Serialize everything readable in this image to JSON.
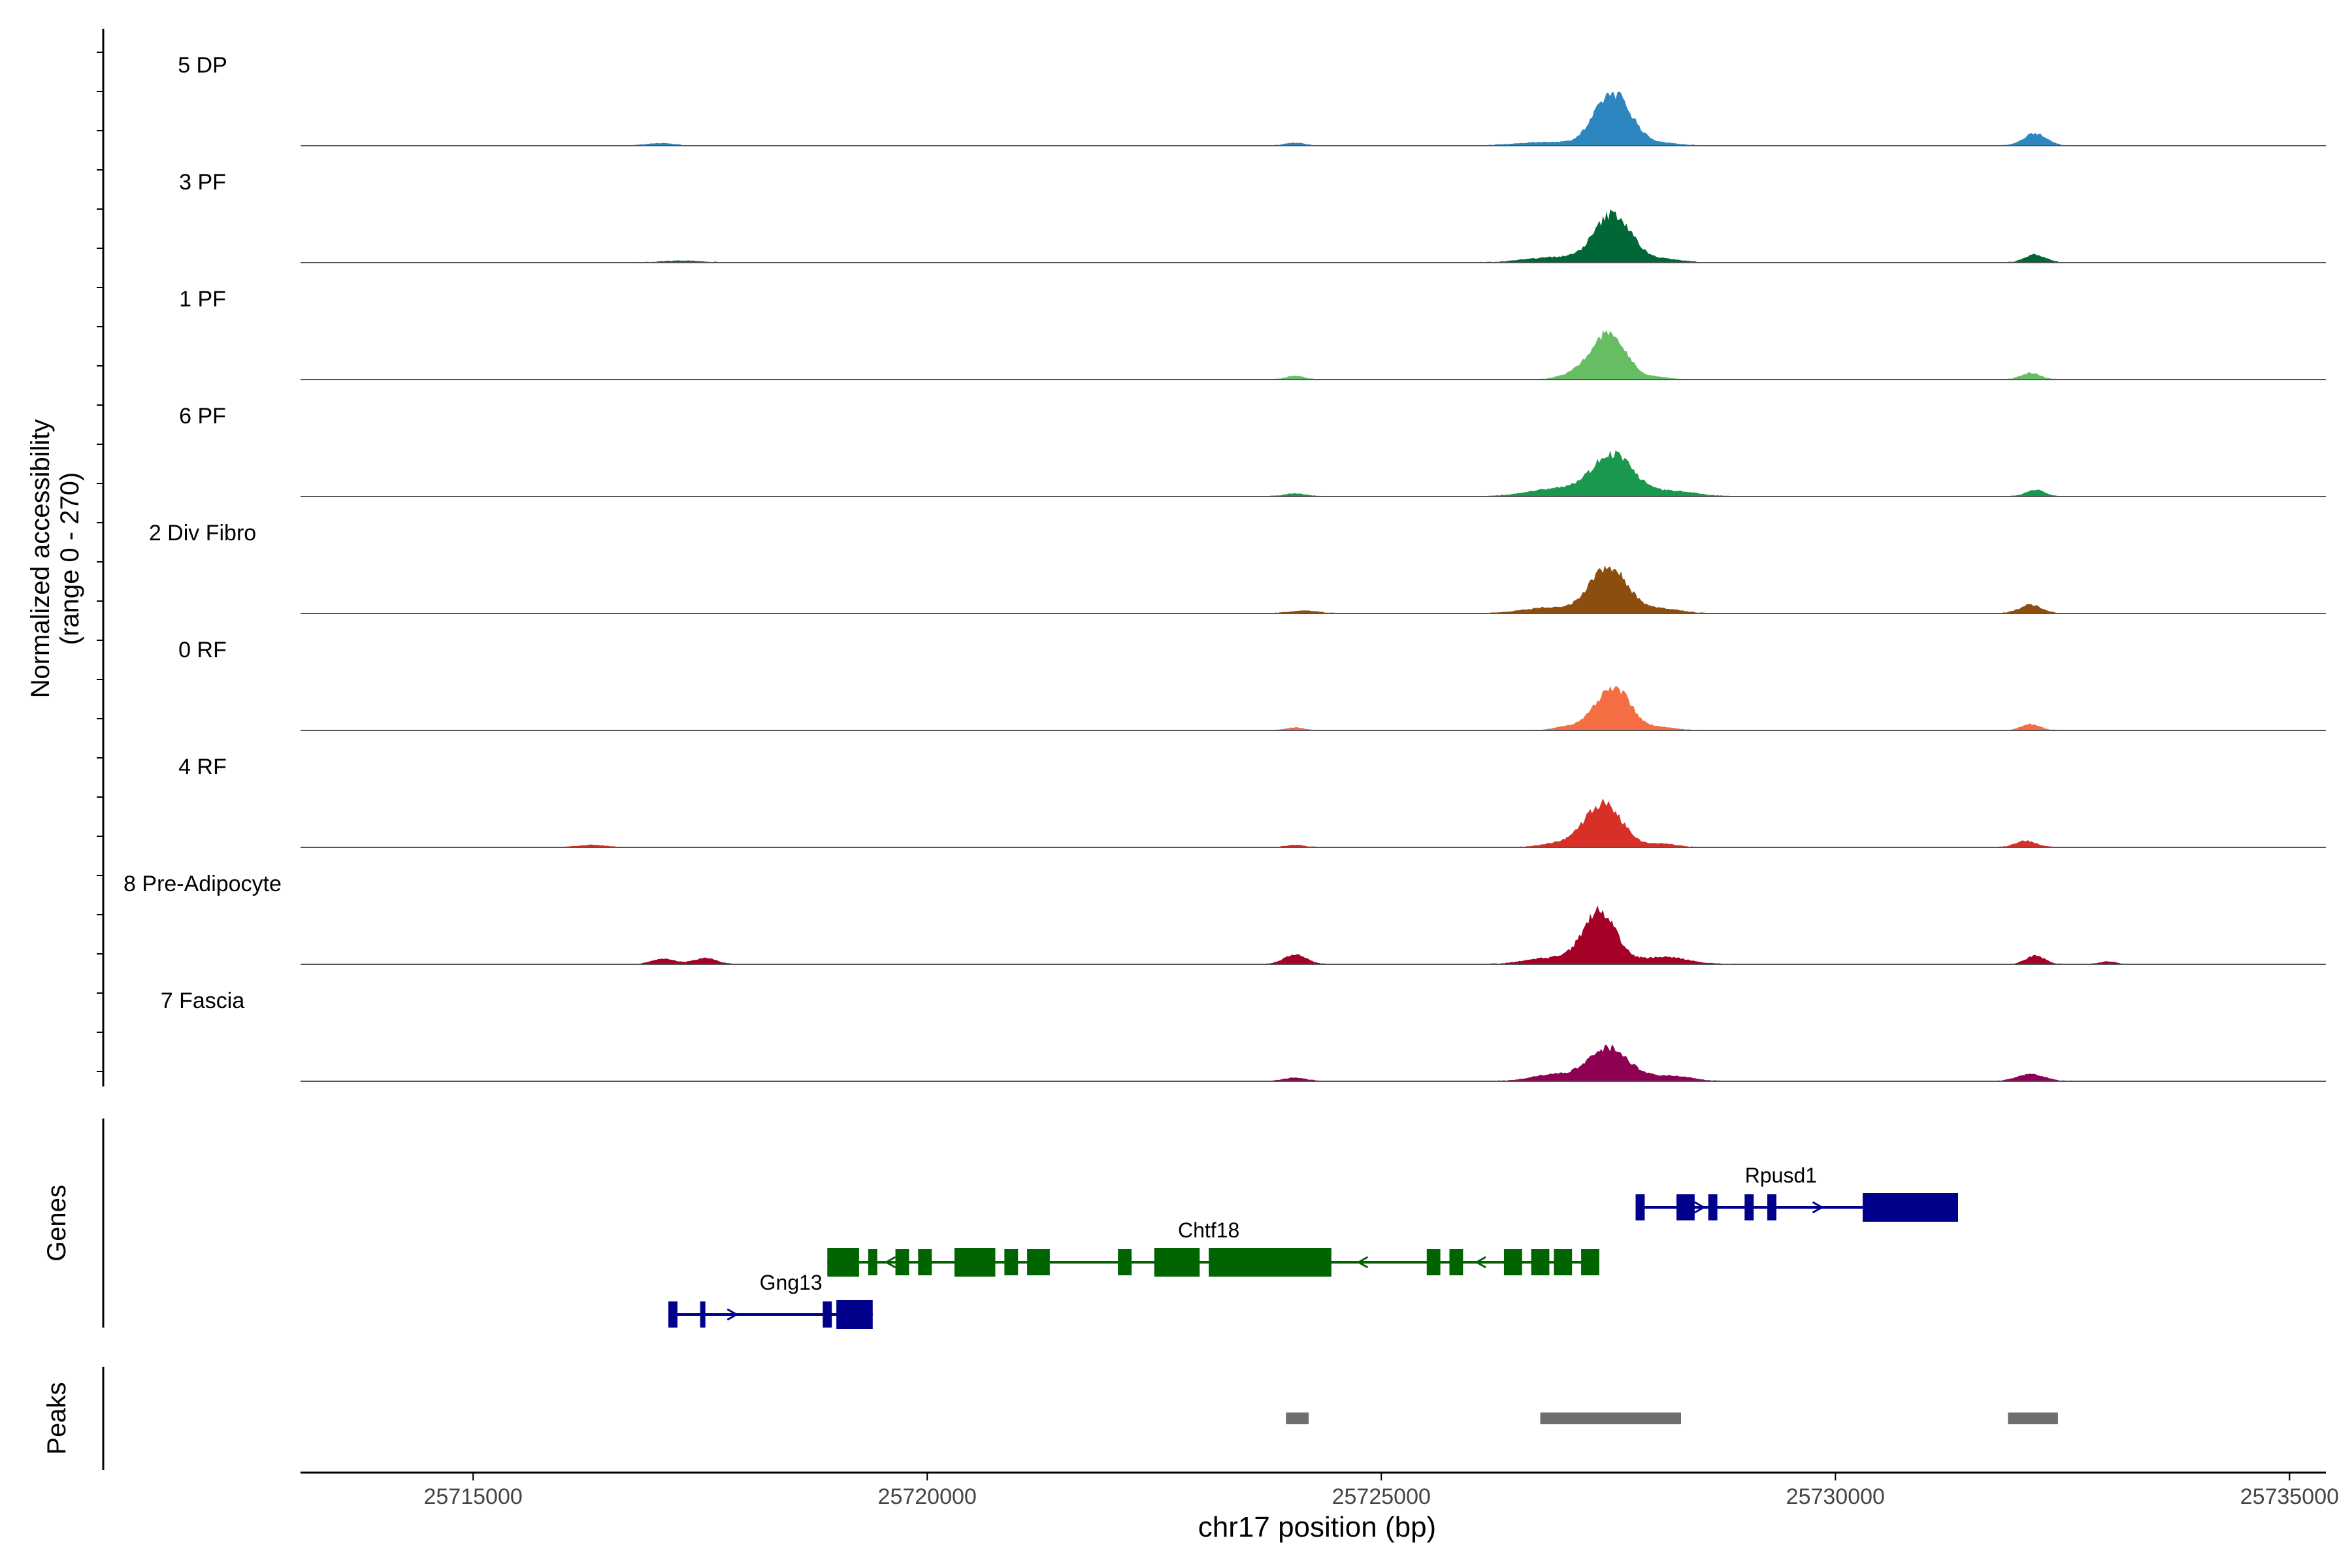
{
  "chart_data": {
    "type": "area",
    "title": "",
    "xlabel": "chr17 position (bp)",
    "ylabel_line1": "Normalized accessibility",
    "ylabel_line2": "(range 0 - 270)",
    "y_range": [
      0,
      270
    ],
    "x_range": [
      25713100,
      25735400
    ],
    "x_ticks": [
      25715000,
      25720000,
      25725000,
      25730000,
      25735000
    ],
    "x_tick_labels": [
      "25715000",
      "25720000",
      "25725000",
      "25730000",
      "25735000"
    ],
    "genes_label": "Genes",
    "peaks_label": "Peaks",
    "tracks": [
      {
        "name": "5 DP",
        "color": "#2E86C1",
        "peaks": [
          [
            25727550,
            250,
            200
          ],
          [
            25732200,
            60,
            120
          ],
          [
            25717050,
            10,
            150
          ],
          [
            25724050,
            12,
            100
          ],
          [
            25726800,
            15,
            300
          ],
          [
            25728100,
            10,
            200
          ]
        ]
      },
      {
        "name": "3 PF",
        "color": "#006837",
        "peaks": [
          [
            25727550,
            230,
            200
          ],
          [
            25732200,
            38,
            110
          ],
          [
            25717300,
            8,
            200
          ],
          [
            25726900,
            25,
            300
          ],
          [
            25728100,
            15,
            200
          ]
        ]
      },
      {
        "name": "1 PF",
        "color": "#66BD63",
        "peaks": [
          [
            25727500,
            220,
            190
          ],
          [
            25732150,
            30,
            100
          ],
          [
            25724050,
            15,
            100
          ],
          [
            25727100,
            20,
            150
          ],
          [
            25728050,
            10,
            120
          ]
        ]
      },
      {
        "name": "6 PF",
        "color": "#1A9850",
        "peaks": [
          [
            25727550,
            200,
            220
          ],
          [
            25732200,
            30,
            100
          ],
          [
            25724050,
            12,
            120
          ],
          [
            25726950,
            40,
            300
          ],
          [
            25728200,
            25,
            250
          ]
        ]
      },
      {
        "name": "2 Div Fibro",
        "color": "#8B4E0E",
        "peaks": [
          [
            25727500,
            220,
            210
          ],
          [
            25732150,
            40,
            120
          ],
          [
            25724150,
            12,
            150
          ],
          [
            25726800,
            25,
            250
          ],
          [
            25728100,
            20,
            200
          ]
        ]
      },
      {
        "name": "0 RF",
        "color": "#F46D43",
        "peaks": [
          [
            25727550,
            210,
            190
          ],
          [
            25732150,
            28,
            100
          ],
          [
            25724050,
            12,
            100
          ],
          [
            25727050,
            15,
            150
          ],
          [
            25728100,
            12,
            150
          ]
        ]
      },
      {
        "name": "4 RF",
        "color": "#D73027",
        "peaks": [
          [
            25727450,
            210,
            200
          ],
          [
            25732100,
            30,
            110
          ],
          [
            25716300,
            10,
            150
          ],
          [
            25724050,
            10,
            100
          ],
          [
            25727000,
            20,
            200
          ],
          [
            25728100,
            15,
            150
          ]
        ]
      },
      {
        "name": "8 Pre-Adipocyte",
        "color": "#A50026",
        "peaks": [
          [
            25727400,
            250,
            180
          ],
          [
            25717100,
            25,
            120
          ],
          [
            25717550,
            30,
            120
          ],
          [
            25724050,
            45,
            120
          ],
          [
            25732200,
            40,
            100
          ],
          [
            25726850,
            30,
            250
          ],
          [
            25728100,
            35,
            250
          ],
          [
            25733000,
            12,
            80
          ]
        ]
      },
      {
        "name": "7 Fascia",
        "color": "#8E0152",
        "peaks": [
          [
            25727500,
            160,
            230
          ],
          [
            25732150,
            35,
            140
          ],
          [
            25724050,
            15,
            120
          ],
          [
            25726850,
            30,
            200
          ],
          [
            25728200,
            25,
            200
          ]
        ]
      }
    ],
    "genes": [
      {
        "name": "Gng13",
        "strand": "+",
        "color": "#00008B",
        "row": 3,
        "start": 25717150,
        "end": 25719400,
        "exons": [
          [
            25717150,
            25717250
          ],
          [
            25717500,
            25717550
          ],
          [
            25718850,
            25718950
          ],
          [
            25719000,
            25719400
          ]
        ]
      },
      {
        "name": "Chtf18",
        "strand": "-",
        "color": "#006400",
        "row": 2,
        "start": 25718900,
        "end": 25727400,
        "exons": [
          [
            25718900,
            25719250
          ],
          [
            25719350,
            25719450
          ],
          [
            25719650,
            25719800
          ],
          [
            25719900,
            25720050
          ],
          [
            25720300,
            25720750
          ],
          [
            25720850,
            25721000
          ],
          [
            25721100,
            25721350
          ],
          [
            25722100,
            25722250
          ],
          [
            25722500,
            25723000
          ],
          [
            25723100,
            25724450
          ],
          [
            25725500,
            25725650
          ],
          [
            25725750,
            25725900
          ],
          [
            25726350,
            25726550
          ],
          [
            25726650,
            25726850
          ],
          [
            25726900,
            25727100
          ],
          [
            25727200,
            25727400
          ]
        ]
      },
      {
        "name": "Rpusd1",
        "strand": "+",
        "color": "#00008B",
        "row": 1,
        "start": 25727800,
        "end": 25731350,
        "exons": [
          [
            25727800,
            25727900
          ],
          [
            25728250,
            25728450
          ],
          [
            25728600,
            25728700
          ],
          [
            25729000,
            25729100
          ],
          [
            25729250,
            25729350
          ],
          [
            25730300,
            25731350
          ]
        ]
      }
    ],
    "peak_regions": [
      [
        25723950,
        25724200
      ],
      [
        25726750,
        25728300
      ],
      [
        25731900,
        25732450
      ]
    ]
  }
}
